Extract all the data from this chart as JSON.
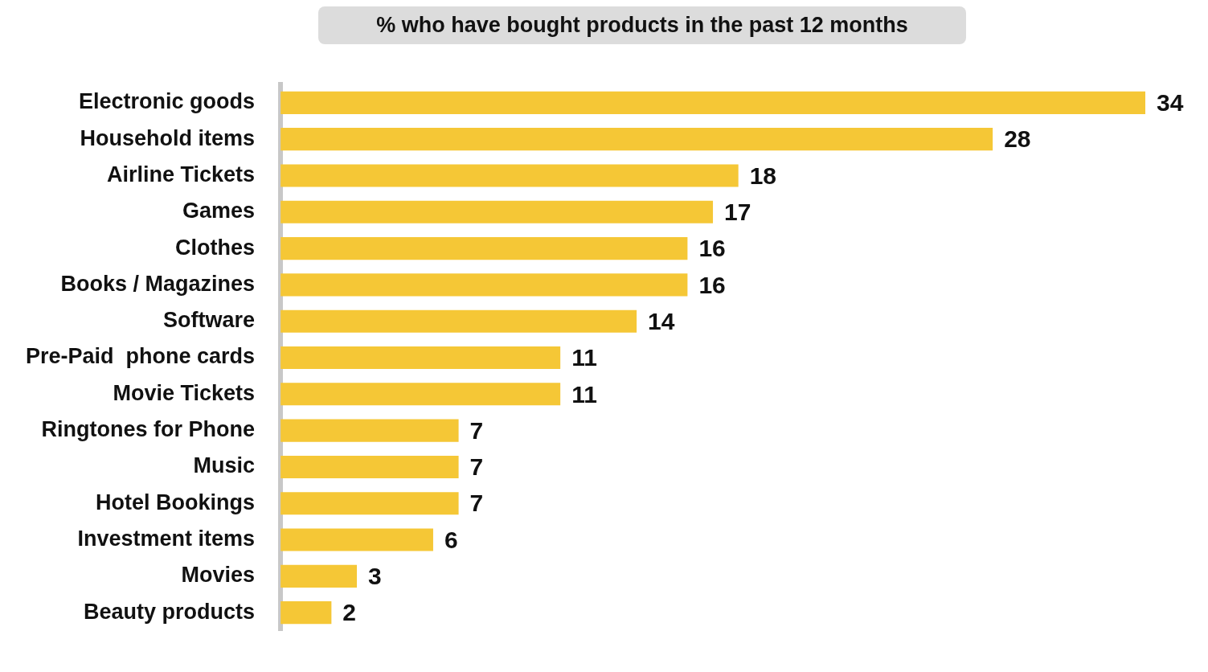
{
  "chart_data": {
    "type": "bar",
    "orientation": "horizontal",
    "title": "% who have bought products in the past 12 months",
    "categories": [
      "Electronic goods",
      "Household items",
      "Airline Tickets",
      "Games",
      "Clothes",
      "Books / Magazines",
      "Software",
      "Pre-Paid  phone cards",
      "Movie Tickets",
      "Ringtones for Phone",
      "Music",
      "Hotel Bookings",
      "Investment items",
      "Movies",
      "Beauty products"
    ],
    "values": [
      34,
      28,
      18,
      17,
      16,
      16,
      14,
      11,
      11,
      7,
      7,
      7,
      6,
      3,
      2
    ],
    "color": "#f5c736",
    "data_labels": true
  }
}
